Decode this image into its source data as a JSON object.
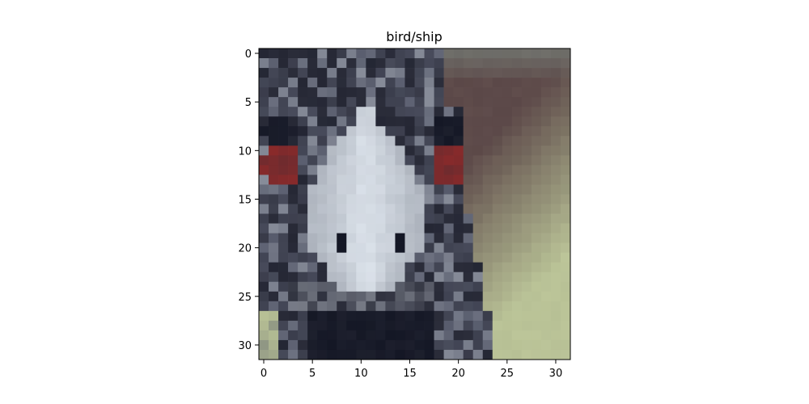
{
  "title": "bird/ship",
  "image": {
    "rows": 32,
    "cols": 32,
    "subject": "emu head close-up, low-resolution pixelated image",
    "palette": {
      "dark_feather": "#2b2d3a",
      "mid_feather": "#55596a",
      "light_feather": "#a9afb9",
      "white_patch": "#dfe6ee",
      "red_eye": "#8a2a2a",
      "background_brown": "#5b4848",
      "background_green": "#b7c095",
      "black_neck": "#141725"
    }
  },
  "axes": {
    "x_ticks": [
      "0",
      "5",
      "10",
      "15",
      "20",
      "25",
      "30"
    ],
    "y_ticks": [
      "0",
      "5",
      "10",
      "15",
      "20",
      "25",
      "30"
    ]
  }
}
